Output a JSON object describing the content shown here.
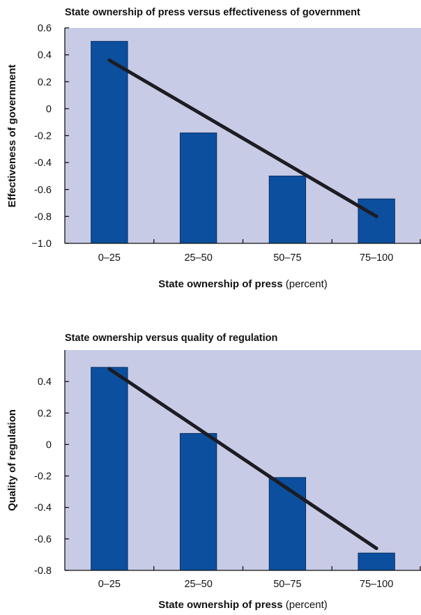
{
  "colors": {
    "plot_bg": "#c8cbe5",
    "bar": "#0b4f9e",
    "bar_edge": "#0a2f66",
    "trend": "#1c1c22",
    "axis": "#111111"
  },
  "chart_data": [
    {
      "type": "bar",
      "title": "State ownership of press versus effectiveness of government",
      "xlabel_bold": "State ownership of press",
      "xlabel_rest": " (percent)",
      "ylabel": "Effectiveness of government",
      "categories": [
        "0–25",
        "25–50",
        "50–75",
        "75–100"
      ],
      "values": [
        0.5,
        -0.18,
        -0.5,
        -0.67
      ],
      "trendline": {
        "start": 0.36,
        "end": -0.8
      },
      "ylim": [
        -1.0,
        0.6
      ],
      "yticks": [
        0.6,
        0.4,
        0.2,
        0,
        -0.2,
        -0.4,
        -0.6,
        -0.8,
        -1.0
      ],
      "ytick_labels": [
        "0.6",
        "0.4",
        "0.2",
        "0",
        "-0.2",
        "-0.4",
        "-0.6",
        "-0.8",
        "−1.0"
      ],
      "grid": false,
      "legend": "none"
    },
    {
      "type": "bar",
      "title": "State ownership versus quality of regulation",
      "xlabel_bold": "State ownership of press",
      "xlabel_rest": " (percent)",
      "ylabel": "Quality of regulation",
      "categories": [
        "0–25",
        "25–50",
        "50–75",
        "75–100"
      ],
      "values": [
        0.49,
        0.07,
        -0.21,
        -0.69
      ],
      "trendline": {
        "start": 0.48,
        "end": -0.66
      },
      "ylim": [
        -0.8,
        0.6
      ],
      "yticks": [
        0.4,
        0.2,
        0,
        -0.2,
        -0.4,
        -0.6,
        -0.8
      ],
      "ytick_labels": [
        "0.4",
        "0.2",
        "0",
        "-0.2",
        "-0.4",
        "-0.6",
        "-0.8"
      ],
      "grid": false,
      "legend": "none"
    }
  ]
}
